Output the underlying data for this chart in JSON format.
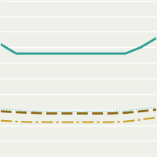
{
  "x": [
    0,
    1,
    2,
    3,
    4,
    5,
    6,
    7,
    8,
    9,
    10
  ],
  "line1": [
    36,
    33,
    33,
    33,
    33,
    33,
    33,
    33,
    33,
    35,
    38
  ],
  "line2": [
    14.5,
    14.2,
    14.0,
    13.8,
    13.8,
    13.8,
    13.8,
    13.8,
    14.0,
    14.5,
    15.0
  ],
  "line3": [
    15.2,
    14.9,
    14.7,
    14.5,
    14.5,
    14.5,
    14.5,
    14.5,
    14.7,
    15.2,
    15.7
  ],
  "line4": [
    11.5,
    11.2,
    11.0,
    11.0,
    11.0,
    11.0,
    11.0,
    11.0,
    11.2,
    11.8,
    12.5
  ],
  "line1_color": "#2a9d8f",
  "line2_color": "#8b6914",
  "line3_color": "#7ec8c8",
  "line4_color": "#c8a020",
  "background_color": "#f0f0eb",
  "grid_color": "#ffffff",
  "ylim": [
    0,
    50
  ],
  "xlim": [
    0,
    10
  ],
  "n_gridlines": 11
}
